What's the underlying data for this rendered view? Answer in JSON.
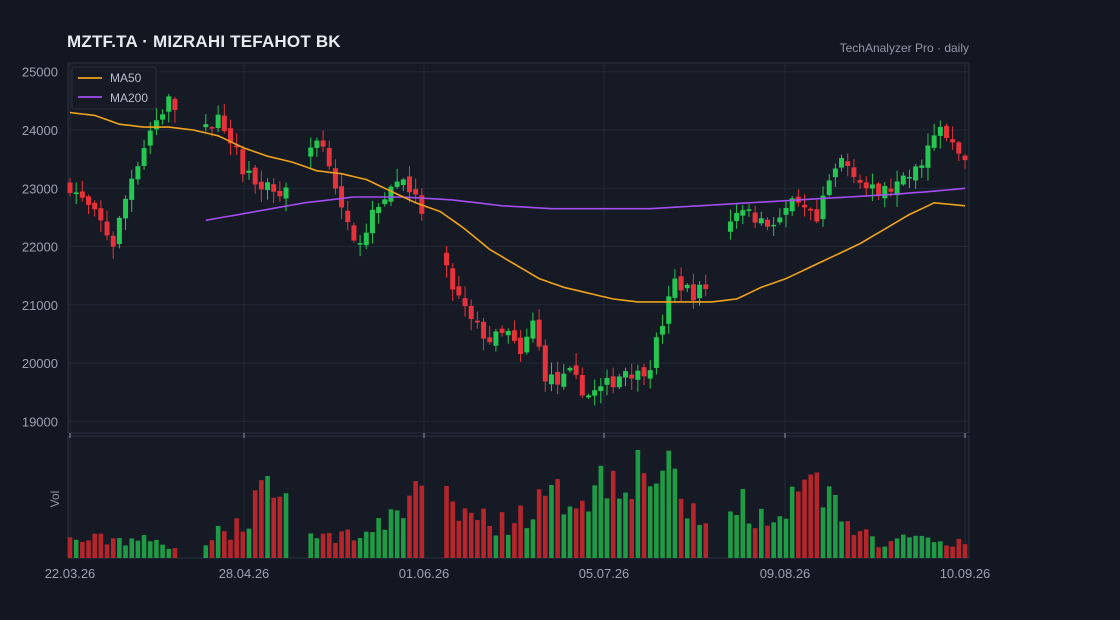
{
  "header": {
    "title": "MZTF.TA  ·  MIZRAHI TEFAHOT BK",
    "source": "TechAnalyzer Pro · daily"
  },
  "colors": {
    "background": "#131722",
    "panel": "#151a25",
    "grid": "#222836",
    "up": "#26c653",
    "down": "#e6333b",
    "ma50": "#f0a21c",
    "ma200": "#a24ef0"
  },
  "chart_data": {
    "type": "candlestick",
    "title": "MZTF.TA  ·  MIZRAHI TEFAHOT BK",
    "price_axis": {
      "ylim": [
        18800,
        25150
      ],
      "ticks": [
        19000,
        20000,
        21000,
        22000,
        23000,
        24000,
        25000
      ]
    },
    "volume_axis": {
      "ylabel": "Vol"
    },
    "x_ticks": [
      "22.03.26",
      "28.04.26",
      "01.06.26",
      "05.07.26",
      "09.08.26",
      "10.09.26"
    ],
    "legend": {
      "position": "top-left",
      "entries": [
        "MA50",
        "MA200"
      ]
    },
    "grid": true,
    "timeframe": "daily",
    "date_range": [
      "22.03.26",
      "10.09.26"
    ],
    "price_anchors": [
      [
        0,
        23050
      ],
      [
        5,
        22400
      ],
      [
        7,
        22050
      ],
      [
        10,
        23200
      ],
      [
        13,
        24000
      ],
      [
        16,
        24500
      ],
      [
        19,
        24100
      ],
      [
        21,
        23900
      ],
      [
        24,
        24200
      ],
      [
        26,
        23900
      ],
      [
        28,
        23300
      ],
      [
        31,
        23100
      ],
      [
        34,
        22900
      ],
      [
        37,
        23300
      ],
      [
        40,
        23900
      ],
      [
        42,
        23500
      ],
      [
        44,
        22600
      ],
      [
        46,
        22000
      ],
      [
        49,
        22500
      ],
      [
        51,
        22900
      ],
      [
        54,
        23200
      ],
      [
        57,
        22600
      ],
      [
        60,
        21800
      ],
      [
        62,
        21300
      ],
      [
        65,
        20700
      ],
      [
        68,
        20400
      ],
      [
        71,
        20500
      ],
      [
        73,
        20100
      ],
      [
        75,
        20700
      ],
      [
        77,
        19800
      ],
      [
        79,
        19650
      ],
      [
        81,
        19800
      ],
      [
        84,
        19450
      ],
      [
        86,
        19550
      ],
      [
        88,
        19700
      ],
      [
        90,
        19900
      ],
      [
        92,
        19800
      ],
      [
        94,
        20000
      ],
      [
        96,
        20700
      ],
      [
        98,
        21400
      ],
      [
        101,
        21200
      ],
      [
        103,
        21300
      ],
      [
        105,
        22200
      ],
      [
        107,
        22400
      ],
      [
        109,
        22700
      ],
      [
        111,
        22500
      ],
      [
        113,
        22400
      ],
      [
        115,
        22500
      ],
      [
        117,
        22700
      ],
      [
        119,
        22600
      ],
      [
        121,
        22400
      ],
      [
        123,
        23100
      ],
      [
        125,
        23500
      ],
      [
        127,
        23300
      ],
      [
        129,
        23000
      ],
      [
        131,
        22900
      ],
      [
        133,
        23000
      ],
      [
        135,
        23100
      ],
      [
        137,
        23300
      ],
      [
        139,
        23700
      ],
      [
        141,
        24000
      ],
      [
        143,
        23700
      ],
      [
        145,
        23500
      ]
    ],
    "ma50_anchors": [
      [
        0,
        24300
      ],
      [
        4,
        24250
      ],
      [
        8,
        24100
      ],
      [
        12,
        24050
      ],
      [
        16,
        24050
      ],
      [
        20,
        24000
      ],
      [
        24,
        23900
      ],
      [
        28,
        23700
      ],
      [
        32,
        23550
      ],
      [
        36,
        23450
      ],
      [
        40,
        23300
      ],
      [
        44,
        23250
      ],
      [
        48,
        23150
      ],
      [
        52,
        22950
      ],
      [
        56,
        22750
      ],
      [
        60,
        22600
      ],
      [
        64,
        22300
      ],
      [
        68,
        21950
      ],
      [
        72,
        21700
      ],
      [
        76,
        21450
      ],
      [
        80,
        21300
      ],
      [
        84,
        21200
      ],
      [
        88,
        21100
      ],
      [
        92,
        21050
      ],
      [
        96,
        21050
      ],
      [
        100,
        21050
      ],
      [
        104,
        21050
      ],
      [
        108,
        21100
      ],
      [
        112,
        21300
      ],
      [
        116,
        21450
      ],
      [
        120,
        21650
      ],
      [
        124,
        21850
      ],
      [
        128,
        22050
      ],
      [
        132,
        22300
      ],
      [
        136,
        22550
      ],
      [
        140,
        22750
      ]
    ],
    "ma200_anchors": [
      [
        22,
        22450
      ],
      [
        30,
        22600
      ],
      [
        38,
        22750
      ],
      [
        46,
        22850
      ],
      [
        54,
        22850
      ],
      [
        62,
        22800
      ],
      [
        70,
        22700
      ],
      [
        78,
        22650
      ],
      [
        86,
        22650
      ],
      [
        94,
        22650
      ],
      [
        102,
        22700
      ],
      [
        110,
        22750
      ],
      [
        118,
        22800
      ],
      [
        126,
        22850
      ],
      [
        134,
        22900
      ],
      [
        140,
        22950
      ],
      [
        145,
        23000
      ]
    ],
    "volume_profile": [
      [
        0,
        0.18
      ],
      [
        10,
        0.2
      ],
      [
        18,
        0.12
      ],
      [
        26,
        0.3
      ],
      [
        32,
        0.65
      ],
      [
        40,
        0.2
      ],
      [
        50,
        0.3
      ],
      [
        56,
        0.75
      ],
      [
        62,
        0.5
      ],
      [
        70,
        0.35
      ],
      [
        78,
        0.6
      ],
      [
        84,
        0.7
      ],
      [
        90,
        0.95
      ],
      [
        96,
        0.9
      ],
      [
        102,
        0.35
      ],
      [
        108,
        0.6
      ],
      [
        114,
        0.3
      ],
      [
        120,
        0.85
      ],
      [
        126,
        0.3
      ],
      [
        132,
        0.15
      ],
      [
        138,
        0.2
      ],
      [
        145,
        0.15
      ]
    ],
    "gaps": [
      [
        18,
        21
      ],
      [
        36,
        38
      ],
      [
        58,
        60
      ],
      [
        104,
        106
      ]
    ]
  }
}
